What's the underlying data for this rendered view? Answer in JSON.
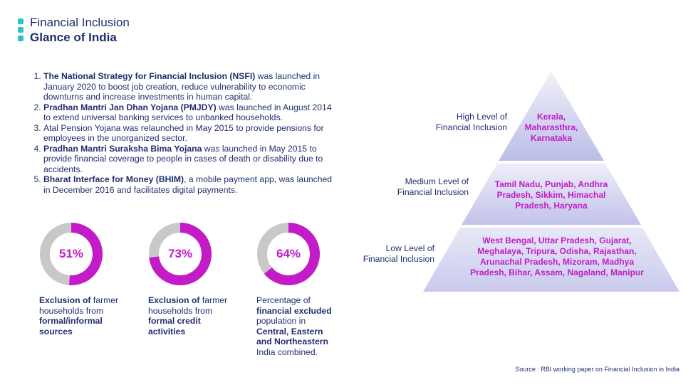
{
  "header": {
    "title": "Financial Inclusion",
    "subtitle": "Glance of India"
  },
  "points": [
    {
      "bold": "The National Strategy for Financial Inclusion (NSFI)",
      "text": " was launched in January 2020 to boost job creation, reduce vulnerability to economic downturns and increase investments in human capital."
    },
    {
      "bold": "Pradhan Mantri Jan Dhan Yojana (PMJDY)",
      "text": " was launched in August 2014 to extend universal banking services to unbanked households."
    },
    {
      "bold": "",
      "text": "Atal Pension Yojana was relaunched in May 2015 to provide pensions for employees in the unorganized sector."
    },
    {
      "bold": "Pradhan Mantri Suraksha Bima Yojana",
      "text": " was launched in May 2015 to provide financial coverage to people in cases of death or disability due to accidents."
    },
    {
      "bold": "Bharat Interface for Money (BHIM)",
      "text": ", a mobile payment app, was launched in December 2016 and facilitates digital payments."
    }
  ],
  "stats": [
    {
      "value": 51,
      "label": "51%",
      "caption": [
        {
          "t": "Exclusion of",
          "b": true
        },
        {
          "t": " farmer households from ",
          "b": false
        },
        {
          "t": "formal/informal sources",
          "b": true
        }
      ]
    },
    {
      "value": 73,
      "label": "73%",
      "caption": [
        {
          "t": "Exclusion of",
          "b": true
        },
        {
          "t": " farmer households from ",
          "b": false
        },
        {
          "t": "formal credit activities",
          "b": true
        }
      ]
    },
    {
      "value": 64,
      "label": "64%",
      "caption": [
        {
          "t": "Percentage of ",
          "b": false
        },
        {
          "t": "financial excluded",
          "b": true
        },
        {
          "t": " population in ",
          "b": false
        },
        {
          "t": "Central, Eastern and Northeastern",
          "b": true
        },
        {
          "t": " India combined.",
          "b": false
        }
      ]
    }
  ],
  "pyramid": {
    "levels": [
      {
        "label_lines": [
          "High Level of",
          "Financial Inclusion"
        ],
        "state_lines": [
          "Kerala,",
          "Maharasthra,",
          "Karnataka"
        ]
      },
      {
        "label_lines": [
          "Medium Level of",
          "Financial Inclusion"
        ],
        "state_lines": [
          "Tamil Nadu, Punjab, Andhra",
          "Pradesh, Sikkim, Himachal",
          "Pradesh, Haryana"
        ]
      },
      {
        "label_lines": [
          "Low Level of",
          "Financial Inclusion"
        ],
        "state_lines": [
          "West Bengal, Uttar Pradesh, Gujarat,",
          "Meghalaya, Tripura, Odisha, Rajasthan,",
          "Arunachal Pradesh, Mizoram, Madhya",
          "Pradesh, Bihar, Assam, Nagaland, Manipur"
        ]
      }
    ]
  },
  "source": "Source : RBI working paper on Financial Inclusion in India",
  "colors": {
    "navy": "#1f2f6e",
    "accent": "#c21bc7",
    "ring_bg": "#c8c8c8",
    "logo": "#2bc4c4"
  }
}
